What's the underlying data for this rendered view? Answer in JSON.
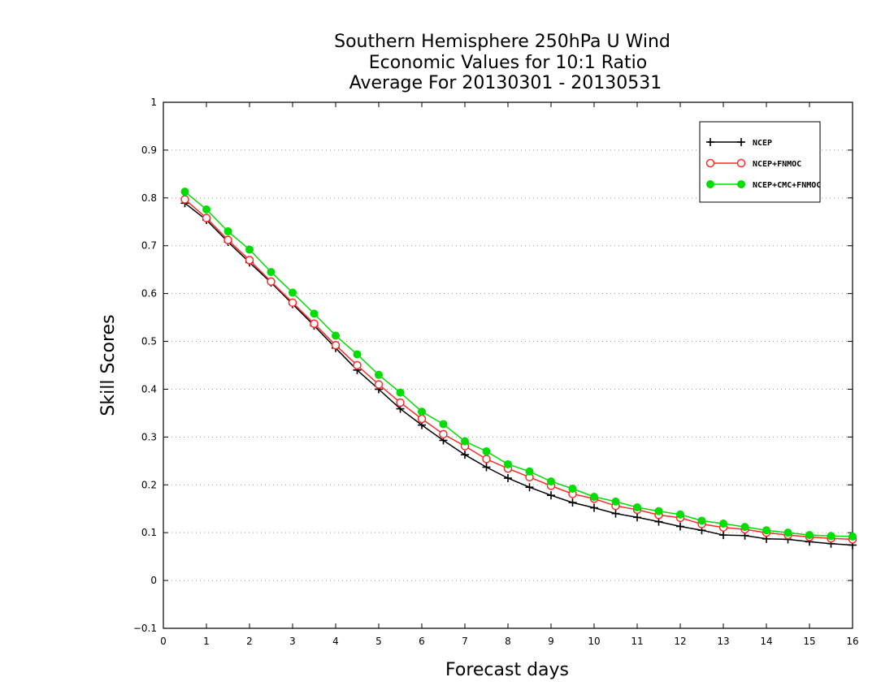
{
  "chart_data": {
    "type": "line",
    "title": [
      "Southern Hemisphere 250hPa U Wind",
      "Economic Values for 10:1 Ratio",
      "Average For 20130301 - 20130531"
    ],
    "xlabel": "Forecast days",
    "ylabel": "Skill Scores",
    "xlim": [
      0,
      16
    ],
    "ylim": [
      -0.1,
      1
    ],
    "xticks": [
      0,
      1,
      2,
      3,
      4,
      5,
      6,
      7,
      8,
      9,
      10,
      11,
      12,
      13,
      14,
      15,
      16
    ],
    "yticks": [
      -0.1,
      0,
      0.1,
      0.2,
      0.3,
      0.4,
      0.5,
      0.6,
      0.7,
      0.8,
      0.9,
      1
    ],
    "ytick_labels": [
      "−0.1",
      "0",
      "0.1",
      "0.2",
      "0.3",
      "0.4",
      "0.5",
      "0.6",
      "0.7",
      "0.8",
      "0.9",
      "1"
    ],
    "grid": "horizontal dotted",
    "legend_position": "top-right",
    "x": [
      0.5,
      1,
      1.5,
      2,
      2.5,
      3,
      3.5,
      4,
      4.5,
      5,
      5.5,
      6,
      6.5,
      7,
      7.5,
      8,
      8.5,
      9,
      9.5,
      10,
      10.5,
      11,
      11.5,
      12,
      12.5,
      13,
      13.5,
      14,
      14.5,
      15,
      15.5,
      16
    ],
    "series": [
      {
        "name": "NCEP",
        "color": "#000000",
        "marker": "plus",
        "values": [
          0.789,
          0.754,
          0.708,
          0.665,
          0.623,
          0.578,
          0.533,
          0.486,
          0.44,
          0.4,
          0.359,
          0.325,
          0.293,
          0.263,
          0.237,
          0.214,
          0.195,
          0.178,
          0.163,
          0.152,
          0.14,
          0.132,
          0.123,
          0.113,
          0.105,
          0.095,
          0.094,
          0.087,
          0.086,
          0.081,
          0.077,
          0.074
        ]
      },
      {
        "name": "NCEP+FNMOC",
        "color": "#ff2a2a",
        "marker": "open-circle",
        "values": [
          0.797,
          0.758,
          0.712,
          0.67,
          0.625,
          0.581,
          0.537,
          0.492,
          0.45,
          0.41,
          0.372,
          0.338,
          0.306,
          0.281,
          0.254,
          0.234,
          0.216,
          0.198,
          0.181,
          0.171,
          0.156,
          0.148,
          0.137,
          0.131,
          0.118,
          0.111,
          0.107,
          0.1,
          0.095,
          0.091,
          0.088,
          0.086
        ]
      },
      {
        "name": "NCEP+CMC+FNMOC",
        "color": "#00dd00",
        "marker": "filled-circle",
        "values": [
          0.813,
          0.776,
          0.73,
          0.692,
          0.645,
          0.602,
          0.558,
          0.512,
          0.473,
          0.43,
          0.393,
          0.353,
          0.327,
          0.291,
          0.27,
          0.243,
          0.228,
          0.207,
          0.192,
          0.175,
          0.165,
          0.153,
          0.145,
          0.138,
          0.125,
          0.119,
          0.112,
          0.105,
          0.1,
          0.095,
          0.093,
          0.092
        ]
      }
    ]
  }
}
